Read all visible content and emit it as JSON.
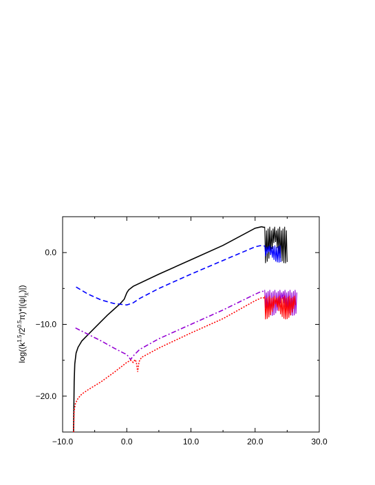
{
  "chart_data": {
    "type": "line",
    "title": "",
    "xlabel": "",
    "ylabel": "log((k^1.5/2^0.5 π)*|(ψ_k|_χ)|)",
    "ylabel_parts": {
      "pre": "log((k",
      "sup1": "1.5",
      "mid1": "/2",
      "sup2": "0.5",
      "mid2": "π)*|(ψ|",
      "sub": "χ",
      "post": ")|)"
    },
    "xlim": [
      -10,
      30
    ],
    "ylim": [
      -25,
      5
    ],
    "x_ticks": [
      -10,
      0,
      10,
      20,
      30
    ],
    "x_tick_labels": [
      "−10.0",
      "0.0",
      "10.0",
      "20.0",
      "30.0"
    ],
    "y_ticks": [
      0,
      -10,
      -20
    ],
    "y_tick_labels": [
      "0.0",
      "−10.0",
      "−20.0"
    ],
    "grid": false,
    "legend": "none",
    "series": [
      {
        "color": "#000000",
        "style": "solid",
        "points": [
          [
            -8.3,
            -25
          ],
          [
            -8.2,
            -18
          ],
          [
            -8.1,
            -15.5
          ],
          [
            -7.9,
            -14
          ],
          [
            -7.6,
            -13.2
          ],
          [
            -7,
            -12.3
          ],
          [
            -6,
            -11.4
          ],
          [
            -5,
            -10.5
          ],
          [
            -4,
            -9.6
          ],
          [
            -3,
            -8.7
          ],
          [
            -2,
            -7.9
          ],
          [
            -1,
            -7.1
          ],
          [
            -0.4,
            -6.5
          ],
          [
            0,
            -5.6
          ],
          [
            0.3,
            -5.2
          ],
          [
            1,
            -4.7
          ],
          [
            5,
            -3
          ],
          [
            10,
            -1
          ],
          [
            15,
            1
          ],
          [
            20,
            3.4
          ],
          [
            21,
            3.6
          ],
          [
            21.5,
            3.5
          ]
        ],
        "oscillation": {
          "x_start": 21.5,
          "x_end": 25,
          "top": 3.6,
          "bottom": -1.5
        }
      },
      {
        "color": "#0000ff",
        "style": "dashed",
        "points": [
          [
            -7.9,
            -4.8
          ],
          [
            -6,
            -5.8
          ],
          [
            -4,
            -6.6
          ],
          [
            -2,
            -7.1
          ],
          [
            0,
            -7.3
          ],
          [
            1,
            -7
          ],
          [
            2,
            -6.4
          ],
          [
            5,
            -5
          ],
          [
            10,
            -3
          ],
          [
            15,
            -1.1
          ],
          [
            20,
            0.8
          ],
          [
            21,
            1
          ],
          [
            21.5,
            0.9
          ]
        ],
        "oscillation": {
          "x_start": 21.5,
          "x_end": 24,
          "top": 1,
          "bottom": -1.4
        }
      },
      {
        "color": "#9400d3",
        "style": "dashdot",
        "points": [
          [
            -8,
            -10.5
          ],
          [
            -6,
            -11.4
          ],
          [
            -4,
            -12.3
          ],
          [
            -2,
            -13.3
          ],
          [
            -0.5,
            -14
          ],
          [
            0,
            -14.2
          ],
          [
            0.6,
            -14.9
          ],
          [
            1,
            -14.4
          ],
          [
            2,
            -13.5
          ],
          [
            5,
            -12
          ],
          [
            10,
            -10
          ],
          [
            15,
            -8
          ],
          [
            20,
            -5.8
          ],
          [
            21,
            -5.4
          ],
          [
            21.5,
            -5.4
          ]
        ],
        "oscillation": {
          "x_start": 21.5,
          "x_end": 26.5,
          "top": -5.2,
          "bottom": -8.8
        }
      },
      {
        "color": "#ff0000",
        "style": "dotted",
        "points": [
          [
            -8.3,
            -25
          ],
          [
            -8.2,
            -22
          ],
          [
            -8,
            -21
          ],
          [
            -7.6,
            -20.3
          ],
          [
            -7,
            -19.7
          ],
          [
            -6,
            -19.1
          ],
          [
            -4,
            -18
          ],
          [
            -2,
            -16.7
          ],
          [
            0,
            -15.3
          ],
          [
            0.6,
            -15
          ],
          [
            1,
            -15.3
          ],
          [
            1.3,
            -14.9
          ],
          [
            1.5,
            -15.3
          ],
          [
            1.7,
            -16.6
          ],
          [
            1.9,
            -15.2
          ],
          [
            2.3,
            -14.6
          ],
          [
            5,
            -13.3
          ],
          [
            10,
            -11.2
          ],
          [
            15,
            -9.2
          ],
          [
            20,
            -6.7
          ],
          [
            21,
            -6.3
          ],
          [
            21.5,
            -6.3
          ]
        ],
        "oscillation": {
          "x_start": 21.5,
          "x_end": 26.3,
          "top": -6.0,
          "bottom": -9.3
        }
      }
    ]
  }
}
